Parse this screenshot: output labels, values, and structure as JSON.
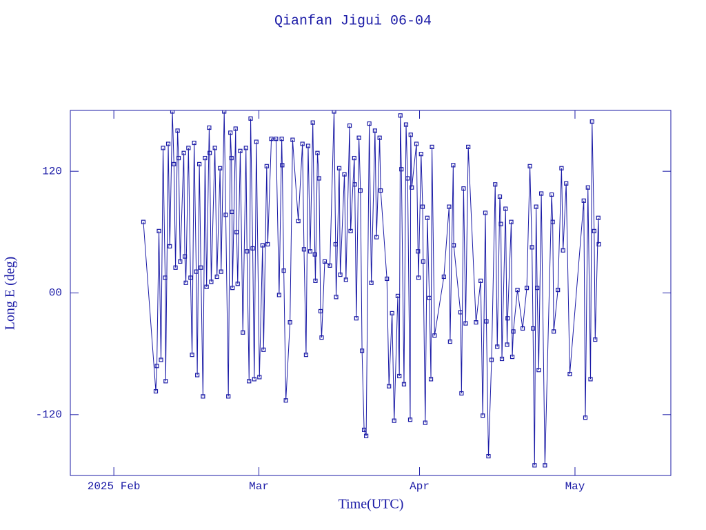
{
  "chart_data": {
    "type": "line",
    "title": "Qianfan Jigui 06-04",
    "xlabel": "Time(UTC)",
    "ylabel": "Long E (deg)",
    "color": "#1a1aa6",
    "xlim": [
      -8.4,
      107.5
    ],
    "ylim": [
      -180,
      180
    ],
    "xticks": [
      {
        "value": 0,
        "label": "2025 Feb"
      },
      {
        "value": 28,
        "label": "Mar"
      },
      {
        "value": 59,
        "label": "Apr"
      },
      {
        "value": 89,
        "label": "May"
      }
    ],
    "yticks": [
      -120,
      {
        "value": 0,
        "label": "00"
      },
      120
    ],
    "x": [
      5.7,
      8.1,
      8.3,
      8.7,
      9.1,
      9.5,
      9.9,
      10.0,
      10.5,
      10.8,
      11.3,
      11.6,
      11.9,
      12.3,
      12.5,
      12.8,
      13.5,
      13.7,
      13.9,
      14.4,
      14.8,
      15.1,
      15.5,
      15.9,
      16.1,
      16.5,
      16.8,
      17.2,
      17.6,
      17.9,
      18.4,
      18.5,
      18.8,
      19.5,
      19.9,
      20.5,
      20.7,
      21.3,
      21.6,
      22.1,
      22.5,
      22.7,
      22.8,
      22.9,
      23.5,
      23.7,
      23.9,
      24.4,
      24.9,
      25.5,
      25.7,
      26.1,
      26.4,
      26.8,
      27.1,
      27.5,
      28.1,
      28.7,
      28.9,
      29.5,
      29.7,
      30.4,
      31.3,
      31.9,
      32.4,
      32.5,
      32.8,
      33.2,
      34.0,
      34.5,
      35.6,
      36.4,
      36.7,
      37.1,
      37.5,
      37.9,
      38.4,
      38.8,
      38.9,
      39.3,
      39.6,
      39.9,
      40.1,
      40.7,
      41.7,
      42.5,
      42.8,
      42.9,
      43.5,
      43.7,
      44.5,
      44.8,
      45.5,
      45.7,
      46.4,
      46.5,
      46.8,
      47.3,
      47.6,
      47.9,
      48.3,
      48.7,
      49.3,
      49.7,
      50.4,
      50.7,
      51.3,
      51.5,
      52.7,
      53.1,
      53.7,
      54.1,
      54.8,
      55.1,
      55.3,
      55.5,
      56.0,
      56.4,
      56.7,
      57.2,
      57.3,
      57.5,
      58.4,
      58.7,
      58.8,
      59.3,
      59.6,
      59.7,
      60.1,
      60.5,
      60.9,
      61.2,
      61.4,
      61.9,
      63.7,
      64.7,
      64.9,
      65.5,
      65.6,
      66.9,
      67.1,
      67.5,
      67.9,
      68.4,
      69.9,
      70.8,
      71.2,
      71.7,
      71.9,
      72.3,
      72.9,
      73.6,
      74.0,
      74.5,
      74.7,
      74.9,
      75.6,
      75.9,
      76.0,
      76.7,
      76.9,
      77.1,
      77.9,
      78.9,
      79.7,
      80.3,
      80.7,
      80.9,
      81.2,
      81.5,
      81.7,
      82.0,
      82.5,
      83.2,
      84.5,
      84.7,
      84.9,
      85.7,
      86.4,
      86.7,
      87.3,
      88.0,
      90.7,
      91.0,
      91.5,
      92.0,
      92.3,
      92.7,
      92.9,
      93.5,
      93.6
    ],
    "values": [
      70,
      -97,
      -72,
      61,
      -66,
      143,
      15,
      -87,
      147,
      46,
      179,
      127,
      25,
      160,
      133,
      31,
      138,
      36,
      10,
      143,
      15,
      -61,
      148,
      21,
      -81,
      127,
      25,
      -102,
      133,
      6,
      163,
      138,
      11,
      143,
      16,
      123,
      21,
      179,
      77,
      -102,
      158,
      133,
      80,
      5,
      162,
      60,
      9,
      140,
      -39,
      143,
      41,
      -87,
      172,
      44,
      -85,
      149,
      -83,
      47,
      -56,
      125,
      48,
      152,
      152,
      -2,
      152,
      126,
      22,
      -106,
      -29,
      151,
      71,
      147,
      43,
      -61,
      145,
      41,
      168,
      38,
      12,
      138,
      113,
      -18,
      -44,
      31,
      27,
      179,
      48,
      -4,
      123,
      18,
      117,
      13,
      165,
      61,
      133,
      107,
      -25,
      153,
      101,
      -57,
      -135,
      -141,
      167,
      10,
      160,
      55,
      153,
      101,
      14,
      -92,
      -20,
      -126,
      -3,
      -82,
      175,
      122,
      -90,
      166,
      113,
      -125,
      156,
      104,
      147,
      41,
      15,
      137,
      85,
      31,
      -128,
      74,
      -5,
      -85,
      144,
      -42,
      16,
      85,
      -48,
      126,
      47,
      -19,
      -99,
      103,
      -30,
      144,
      -29,
      12,
      -121,
      79,
      -28,
      -161,
      -66,
      107,
      -53,
      95,
      68,
      -65,
      83,
      -51,
      -25,
      70,
      -63,
      -38,
      3,
      -35,
      5,
      125,
      45,
      -35,
      -170,
      85,
      5,
      -76,
      98,
      -170,
      97,
      70,
      -38,
      3,
      123,
      42,
      108,
      -80,
      91,
      -123,
      104,
      -85,
      169,
      61,
      -46,
      74,
      48
    ]
  }
}
